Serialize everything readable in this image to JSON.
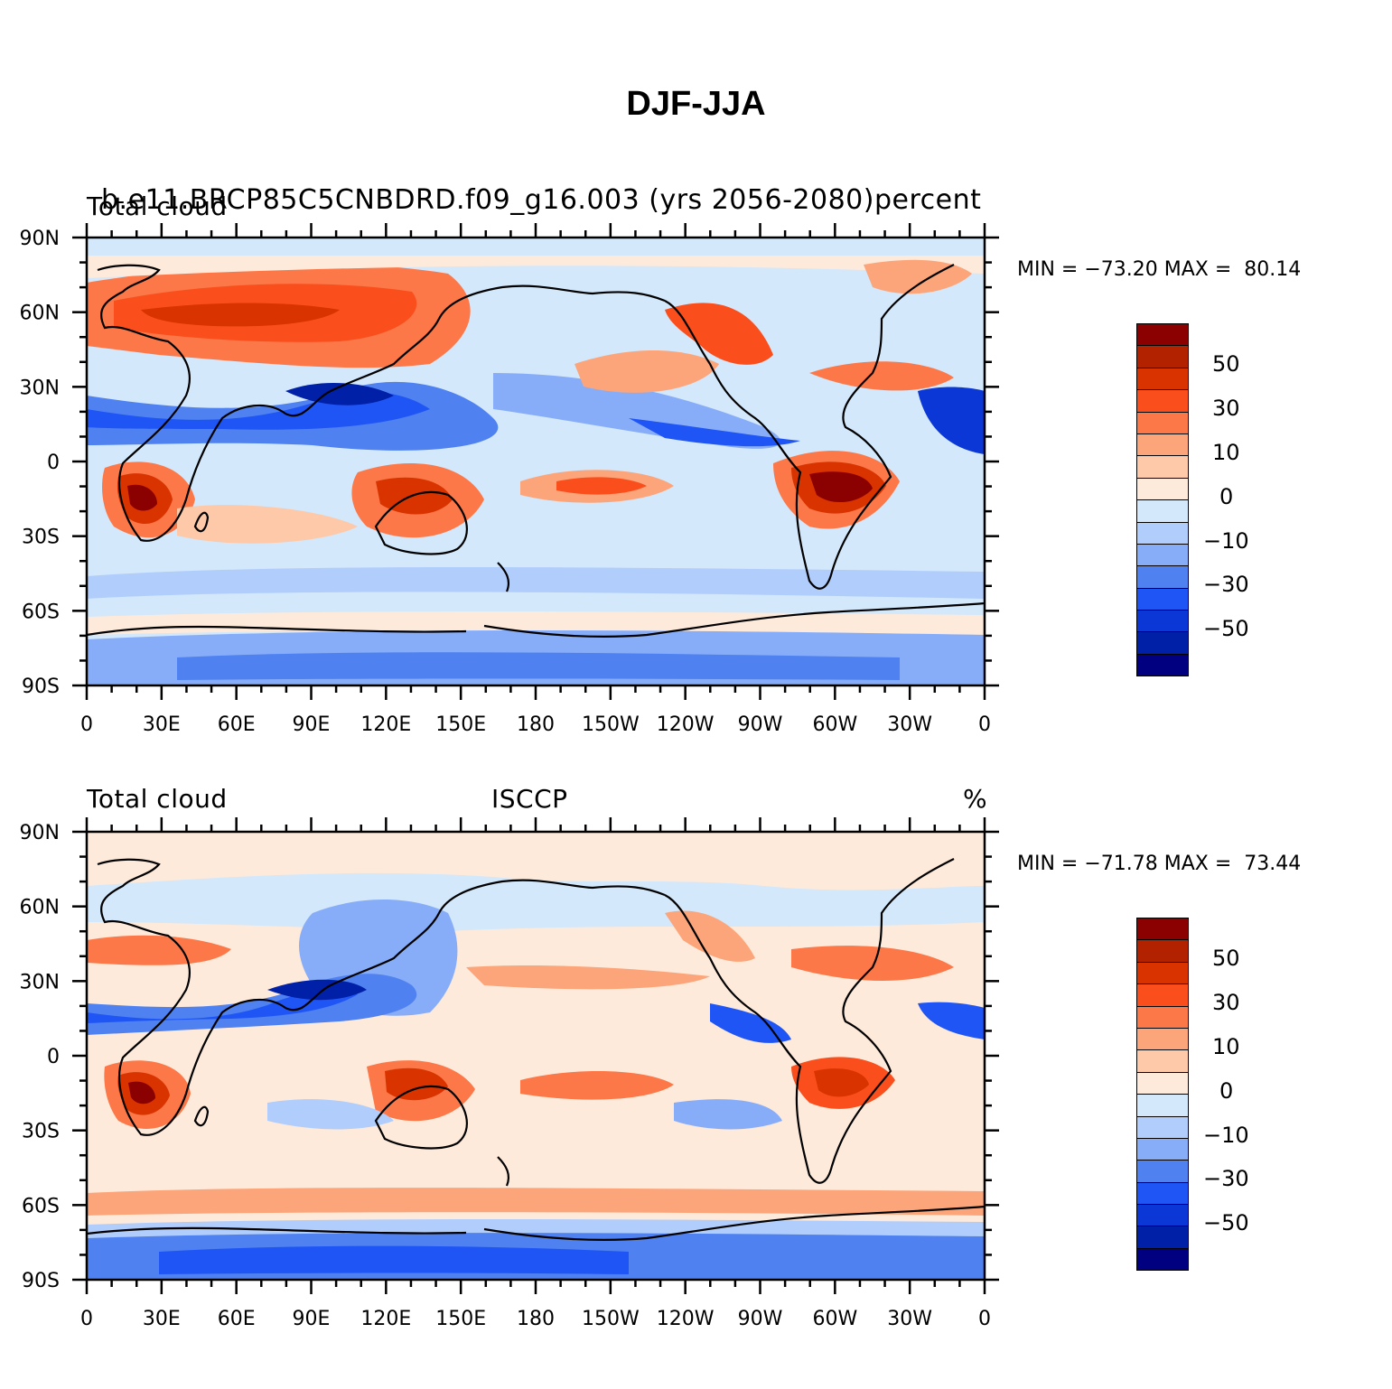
{
  "figure": {
    "title": "DJF-JJA"
  },
  "colorbar": {
    "colors": [
      "#8b0000",
      "#b22200",
      "#d93300",
      "#fa4f1c",
      "#fc7848",
      "#fca57a",
      "#fdc9a9",
      "#feeadb",
      "#d3e8fb",
      "#b0cdfb",
      "#87adf8",
      "#4f82f0",
      "#1f55f5",
      "#0a37d6",
      "#0020a8",
      "#000080"
    ],
    "labels": [
      "50",
      "30",
      "10",
      "0",
      "−10",
      "−30",
      "−50"
    ]
  },
  "axes": {
    "lat_labels": [
      "90N",
      "60N",
      "30N",
      "0",
      "30S",
      "60S",
      "90S"
    ],
    "lon_labels": [
      "0",
      "30E",
      "60E",
      "90E",
      "120E",
      "150E",
      "180",
      "150W",
      "120W",
      "90W",
      "60W",
      "30W",
      "0"
    ]
  },
  "panels": [
    {
      "left": "Total cloud",
      "center": "b.e11.BRCP85C5CNBDRD.f09_g16.003 (yrs 2056-2080)",
      "right": "percent",
      "stats": "MIN = −73.20 MAX =  80.14"
    },
    {
      "left": "Total cloud",
      "center": "ISCCP",
      "right": "%",
      "stats": "MIN = −71.78 MAX =  73.44"
    }
  ]
}
